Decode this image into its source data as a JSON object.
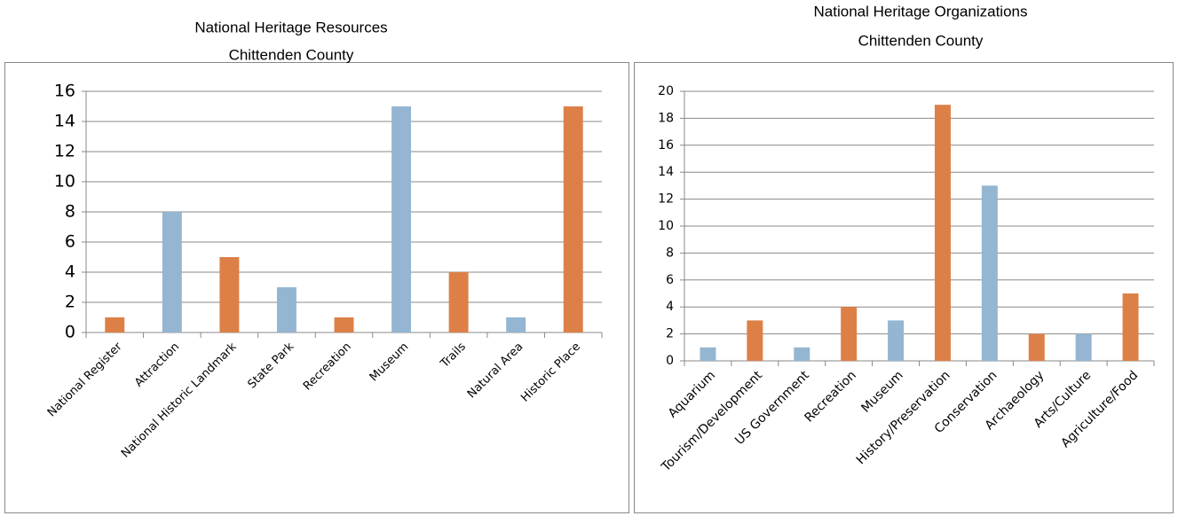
{
  "chart_data": [
    {
      "type": "bar",
      "title": "National Heritage Resources",
      "subtitle": "Chittenden County",
      "categories": [
        "National Register",
        "Attraction",
        "National Historic Landmark",
        "State Park",
        "Recreation",
        "Museum",
        "Trails",
        "Natural Area",
        "Historic Place"
      ],
      "values": [
        1,
        8,
        5,
        3,
        1,
        15,
        4,
        1,
        15
      ],
      "colors": [
        "#dd8047",
        "#94b6d2",
        "#dd8047",
        "#94b6d2",
        "#dd8047",
        "#94b6d2",
        "#dd8047",
        "#94b6d2",
        "#dd8047"
      ],
      "ylim": [
        0,
        16
      ],
      "yticks": [
        0,
        2,
        4,
        6,
        8,
        10,
        12,
        14,
        16
      ],
      "grid": true
    },
    {
      "type": "bar",
      "title": "National Heritage Organizations",
      "subtitle": "Chittenden County",
      "categories": [
        "Aquarium",
        "Tourism/Development",
        "US Government",
        "Recreation",
        "Museum",
        "History/Preservation",
        "Conservation",
        "Archaeology",
        "Arts/Culture",
        "Agriculture/Food"
      ],
      "values": [
        1,
        3,
        1,
        4,
        3,
        19,
        13,
        2,
        2,
        5
      ],
      "colors": [
        "#94b6d2",
        "#dd8047",
        "#94b6d2",
        "#dd8047",
        "#94b6d2",
        "#dd8047",
        "#94b6d2",
        "#dd8047",
        "#94b6d2",
        "#dd8047"
      ],
      "ylim": [
        0,
        20
      ],
      "yticks": [
        0,
        2,
        4,
        6,
        8,
        10,
        12,
        14,
        16,
        18,
        20
      ],
      "grid": true
    }
  ]
}
